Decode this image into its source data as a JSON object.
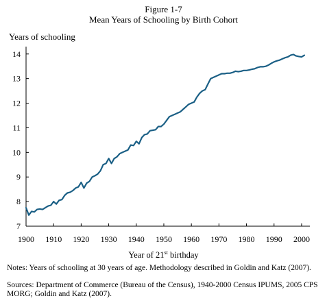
{
  "figure_number": "Figure 1-7",
  "chart_data": {
    "type": "line",
    "title": "Mean Years of Schooling by Birth Cohort",
    "ylabel": "Years of schooling",
    "xlabel_prefix": "Year of 21",
    "xlabel_sup": "st",
    "xlabel_suffix": " birthday",
    "xlim": [
      1900,
      2003
    ],
    "ylim": [
      7,
      14.3
    ],
    "x_ticks": [
      1900,
      1910,
      1920,
      1930,
      1940,
      1950,
      1960,
      1970,
      1980,
      1990,
      2000
    ],
    "y_ticks": [
      7,
      8,
      9,
      10,
      11,
      12,
      13,
      14
    ],
    "grid": false,
    "line_color": "#1a5f85",
    "series": [
      {
        "x": [
          1900,
          1901,
          1902,
          1903,
          1904,
          1905,
          1906,
          1907,
          1908,
          1909,
          1910,
          1911,
          1912,
          1913,
          1914,
          1915,
          1916,
          1917,
          1918,
          1919,
          1920,
          1921,
          1922,
          1923,
          1924,
          1925,
          1926,
          1927,
          1928,
          1929,
          1930,
          1931,
          1932,
          1933,
          1934,
          1935,
          1936,
          1937,
          1938,
          1939,
          1940,
          1941,
          1942,
          1943,
          1944,
          1945,
          1946,
          1947,
          1948,
          1949,
          1950,
          1951,
          1952,
          1953,
          1954,
          1955,
          1956,
          1957,
          1958,
          1959,
          1960,
          1961,
          1962,
          1963,
          1964,
          1965,
          1966,
          1967,
          1968,
          1969,
          1970,
          1971,
          1972,
          1973,
          1974,
          1975,
          1976,
          1977,
          1978,
          1979,
          1980,
          1981,
          1982,
          1983,
          1984,
          1985,
          1986,
          1987,
          1988,
          1989,
          1990,
          1991,
          1992,
          1993,
          1994,
          1995,
          1996,
          1997,
          1998,
          1999,
          2000,
          2001
        ],
        "y": [
          7.75,
          7.45,
          7.6,
          7.58,
          7.68,
          7.7,
          7.68,
          7.75,
          7.82,
          7.85,
          8.0,
          7.9,
          8.05,
          8.08,
          8.25,
          8.35,
          8.38,
          8.45,
          8.55,
          8.6,
          8.78,
          8.55,
          8.75,
          8.82,
          9.0,
          9.05,
          9.12,
          9.25,
          9.5,
          9.55,
          9.75,
          9.55,
          9.75,
          9.82,
          9.95,
          10.0,
          10.05,
          10.1,
          10.3,
          10.28,
          10.45,
          10.35,
          10.6,
          10.72,
          10.75,
          10.88,
          10.9,
          10.92,
          11.05,
          11.05,
          11.15,
          11.3,
          11.45,
          11.5,
          11.55,
          11.6,
          11.65,
          11.75,
          11.85,
          11.95,
          12.0,
          12.05,
          12.25,
          12.4,
          12.5,
          12.55,
          12.78,
          13.0,
          13.05,
          13.1,
          13.15,
          13.2,
          13.2,
          13.22,
          13.22,
          13.25,
          13.3,
          13.28,
          13.3,
          13.33,
          13.33,
          13.35,
          13.38,
          13.4,
          13.45,
          13.48,
          13.48,
          13.5,
          13.55,
          13.62,
          13.68,
          13.72,
          13.75,
          13.8,
          13.85,
          13.88,
          13.95,
          13.98,
          13.92,
          13.9,
          13.88,
          13.95
        ]
      }
    ]
  },
  "notes": "Notes:  Years of schooling at 30 years of age.  Methodology described in Goldin and Katz (2007).",
  "sources": "Sources:  Department of Commerce (Bureau of the Census), 1940-2000 Census IPUMS, 2005 CPS MORG; Goldin and Katz (2007)."
}
